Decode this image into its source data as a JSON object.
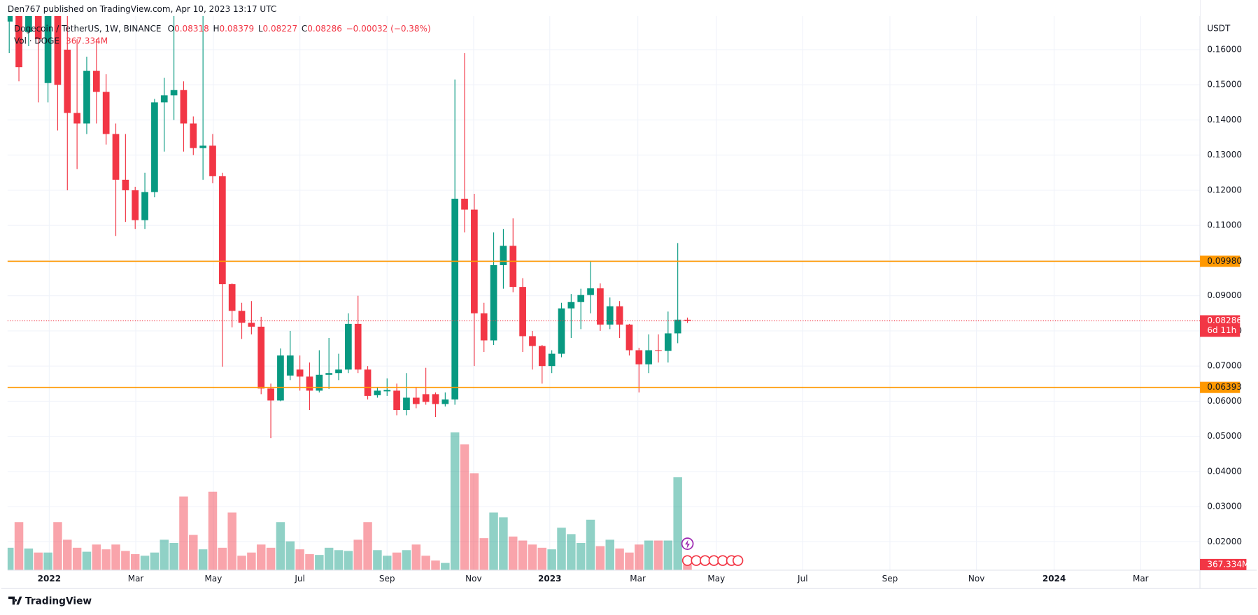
{
  "header": "Den767 published on TradingView.com, Apr 10, 2023 13:17 UTC",
  "footer": "TradingView",
  "chart_data": {
    "type": "candlestick",
    "symbol": "Dogecoin / TetherUS, 1W, BINANCE",
    "ohlc_prefixes": [
      "O",
      "H",
      "L",
      "C"
    ],
    "change_label": "−0.00032 (−0.38%)",
    "volume_title": "Vol · DOGE",
    "volume_value_label": "367.334M",
    "countdown": "6d 11h",
    "axis_unit": "USDT",
    "up_color": "#089981",
    "down_color": "#f23645",
    "level_color": "#ff9800",
    "open": [
      0.168,
      0.172,
      0.165,
      0.176,
      0.1505,
      0.174,
      0.16,
      0.142,
      0.139,
      0.154,
      0.148,
      0.136,
      0.123,
      0.12,
      0.1115,
      0.1195,
      0.145,
      0.147,
      0.1485,
      0.139,
      0.132,
      0.1327,
      0.124,
      0.0933,
      0.0857,
      0.0823,
      0.0812,
      0.0636,
      0.0602,
      0.0673,
      0.069,
      0.067,
      0.063,
      0.0675,
      0.068,
      0.069,
      0.082,
      0.069,
      0.0617,
      0.0628,
      0.063,
      0.0575,
      0.061,
      0.062,
      0.062,
      0.0592,
      0.0605,
      0.1176,
      0.1145,
      0.085,
      0.0773,
      0.0987,
      0.1042,
      0.0925,
      0.0785,
      0.0757,
      0.07,
      0.0735,
      0.0864,
      0.0882,
      0.0902,
      0.0921,
      0.0818,
      0.087,
      0.0818,
      0.0745,
      0.0705,
      0.0745,
      0.0743,
      0.0793,
      0.08318
    ],
    "high": [
      0.176,
      0.176,
      0.176,
      0.178,
      0.178,
      0.178,
      0.17,
      0.163,
      0.158,
      0.163,
      0.153,
      0.139,
      0.136,
      0.121,
      0.125,
      0.146,
      0.152,
      0.174,
      0.151,
      0.141,
      0.176,
      0.136,
      0.125,
      0.0935,
      0.088,
      0.0885,
      0.084,
      0.065,
      0.075,
      0.08,
      0.073,
      0.071,
      0.0745,
      0.078,
      0.0735,
      0.085,
      0.09,
      0.07,
      0.064,
      0.0665,
      0.065,
      0.068,
      0.064,
      0.0695,
      0.0625,
      0.0625,
      0.1515,
      0.159,
      0.119,
      0.088,
      0.108,
      0.109,
      0.112,
      0.095,
      0.08,
      0.076,
      0.0745,
      0.088,
      0.0905,
      0.092,
      0.0999,
      0.0935,
      0.0895,
      0.0885,
      0.082,
      0.0752,
      0.079,
      0.079,
      0.0855,
      0.105,
      0.08379
    ],
    "low": [
      0.159,
      0.151,
      0.161,
      0.145,
      0.145,
      0.137,
      0.12,
      0.126,
      0.136,
      0.139,
      0.133,
      0.107,
      0.111,
      0.109,
      0.109,
      0.118,
      0.131,
      0.14,
      0.131,
      0.13,
      0.123,
      0.122,
      0.0698,
      0.081,
      0.0777,
      0.079,
      0.062,
      0.0495,
      0.06,
      0.066,
      0.063,
      0.0575,
      0.0625,
      0.0635,
      0.066,
      0.068,
      0.068,
      0.0605,
      0.061,
      0.0615,
      0.056,
      0.056,
      0.058,
      0.059,
      0.0555,
      0.0585,
      0.059,
      0.108,
      0.07,
      0.074,
      0.076,
      0.092,
      0.091,
      0.074,
      0.069,
      0.065,
      0.068,
      0.0725,
      0.078,
      0.0805,
      0.085,
      0.08,
      0.0805,
      0.078,
      0.073,
      0.0625,
      0.068,
      0.071,
      0.071,
      0.0765,
      0.08227
    ],
    "close": [
      0.172,
      0.155,
      0.172,
      0.163,
      0.175,
      0.15,
      0.142,
      0.139,
      0.154,
      0.148,
      0.136,
      0.123,
      0.12,
      0.1115,
      0.1195,
      0.145,
      0.147,
      0.1485,
      0.139,
      0.132,
      0.1327,
      0.124,
      0.0933,
      0.0857,
      0.0823,
      0.0812,
      0.0636,
      0.0602,
      0.073,
      0.073,
      0.067,
      0.063,
      0.0675,
      0.068,
      0.069,
      0.082,
      0.069,
      0.0615,
      0.063,
      0.0632,
      0.0575,
      0.061,
      0.0592,
      0.0598,
      0.0592,
      0.0605,
      0.1176,
      0.1145,
      0.085,
      0.0773,
      0.0987,
      0.1042,
      0.0925,
      0.0785,
      0.0757,
      0.07,
      0.0735,
      0.0864,
      0.0882,
      0.0902,
      0.0921,
      0.0818,
      0.087,
      0.0818,
      0.0745,
      0.0705,
      0.0745,
      0.0743,
      0.0793,
      0.0832,
      0.08286
    ],
    "volume": [
      1470,
      3150,
      1418,
      1155,
      1155,
      3150,
      1995,
      1470,
      1208,
      1680,
      1365,
      1680,
      1260,
      1050,
      945,
      1155,
      1995,
      1785,
      4830,
      2310,
      1365,
      5145,
      1470,
      3780,
      945,
      1155,
      1680,
      1470,
      3150,
      1890,
      1365,
      1050,
      998,
      1470,
      1313,
      1260,
      1995,
      3150,
      1313,
      945,
      1155,
      1313,
      1680,
      945,
      630,
      473,
      9030,
      8243,
      6353,
      2100,
      3780,
      3465,
      2205,
      1943,
      1680,
      1470,
      1365,
      2783,
      2363,
      1785,
      3308,
      1575,
      1995,
      1418,
      1155,
      1680,
      1943,
      1943,
      1943,
      6090,
      367.334
    ],
    "volume_ylim": [
      0,
      36330
    ],
    "ylim": [
      0.01194,
      0.16957
    ],
    "yticks": [
      {
        "value": 0.02,
        "label": "0.02000"
      },
      {
        "value": 0.03,
        "label": "0.03000"
      },
      {
        "value": 0.04,
        "label": "0.04000"
      },
      {
        "value": 0.05,
        "label": "0.05000"
      },
      {
        "value": 0.06,
        "label": "0.06000"
      },
      {
        "value": 0.07,
        "label": "0.07000"
      },
      {
        "value": 0.08,
        "label": "0.08000"
      },
      {
        "value": 0.09,
        "label": "0.09000"
      },
      {
        "value": 0.1,
        "label": "0.10000"
      },
      {
        "value": 0.11,
        "label": "0.11000"
      },
      {
        "value": 0.12,
        "label": "0.12000"
      },
      {
        "value": 0.13,
        "label": "0.13000"
      },
      {
        "value": 0.14,
        "label": "0.14000"
      },
      {
        "value": 0.15,
        "label": "0.15000"
      },
      {
        "value": 0.16,
        "label": "0.16000"
      }
    ],
    "xlim": [
      -0.17,
      122.9
    ],
    "xticks": [
      {
        "value": 4.13,
        "label": "2022"
      },
      {
        "value": 13.06,
        "label": "Mar"
      },
      {
        "value": 21.07,
        "label": "May"
      },
      {
        "value": 30.0,
        "label": "Jul"
      },
      {
        "value": 39.0,
        "label": "Sep"
      },
      {
        "value": 47.93,
        "label": "Nov"
      },
      {
        "value": 55.79,
        "label": "2023"
      },
      {
        "value": 64.88,
        "label": "Mar"
      },
      {
        "value": 72.98,
        "label": "May"
      },
      {
        "value": 81.9,
        "label": "Jul"
      },
      {
        "value": 90.9,
        "label": "Sep"
      },
      {
        "value": 99.83,
        "label": "Nov"
      },
      {
        "value": 107.85,
        "label": "2024"
      },
      {
        "value": 116.78,
        "label": "Mar"
      }
    ],
    "levels": [
      {
        "value": 0.0998,
        "label": "0.09980"
      },
      {
        "value": 0.06393,
        "label": "0.06393"
      }
    ],
    "grid": true
  }
}
